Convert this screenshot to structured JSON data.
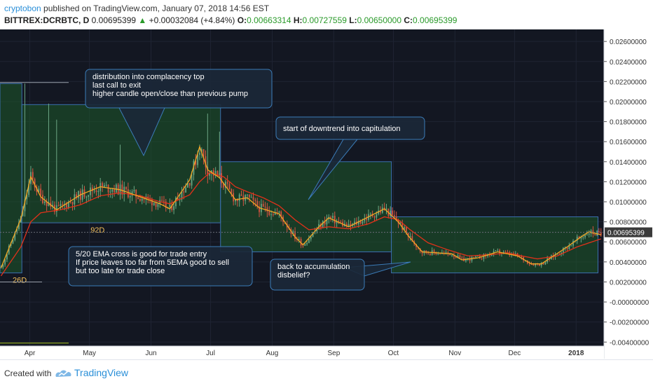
{
  "header": {
    "author": "cryptobon",
    "published": "published on TradingView.com, January 07, 2018 14:56 EST",
    "symbol": "BITTREX:DCRBTC, D",
    "last": "0.00695399",
    "change": "+0.00032084 (+4.84%)",
    "o_label": "O:",
    "o_val": "0.00663314",
    "h_label": "H:",
    "h_val": "0.00727559",
    "l_label": "L:",
    "l_val": "0.00650000",
    "c_label": "C:",
    "c_val": "0.00695399"
  },
  "footer": {
    "created_with": "Created with",
    "brand": "TradingView"
  },
  "colors": {
    "background": "#131722",
    "up": "#6ba583",
    "down": "#d75442",
    "ema_fast": "#f5a623",
    "ema_slow": "#e2311a",
    "zone": "#1e5a2a",
    "box_fill": "#1b2838",
    "box_border": "#3b7cb8",
    "price_label": "#3a3a3a"
  },
  "chart_data": {
    "type": "candlestick",
    "title": "BITTREX:DCRBTC, D",
    "x_ticks": [
      "Apr",
      "May",
      "Jun",
      "Jul",
      "Aug",
      "Sep",
      "Oct",
      "Nov",
      "Dec",
      "2018"
    ],
    "y_ticks": [
      "0.02600000",
      "0.02400000",
      "0.02200000",
      "0.02000000",
      "0.01800000",
      "0.01600000",
      "0.01400000",
      "0.01200000",
      "0.01000000",
      "0.00800000",
      "0.00600000",
      "0.00400000",
      "0.00200000",
      "-0.00000000",
      "-0.00200000",
      "-0.00400000"
    ],
    "ylim": [
      -0.0044,
      0.0272
    ],
    "xlim": [
      "2017-03-17",
      "2018-01-15"
    ],
    "last_price_label": "0.00695399",
    "series": [
      {
        "name": "EMA 5",
        "values": [
          [
            0,
            0.0034
          ],
          [
            10,
            0.0083
          ],
          [
            15,
            0.0125
          ],
          [
            20,
            0.0105
          ],
          [
            28,
            0.0092
          ],
          [
            40,
            0.0107
          ],
          [
            50,
            0.0115
          ],
          [
            60,
            0.0112
          ],
          [
            70,
            0.0105
          ],
          [
            80,
            0.0098
          ],
          [
            85,
            0.0093
          ],
          [
            95,
            0.0122
          ],
          [
            100,
            0.0155
          ],
          [
            104,
            0.0132
          ],
          [
            110,
            0.0124
          ],
          [
            118,
            0.0102
          ],
          [
            124,
            0.0104
          ],
          [
            130,
            0.0094
          ],
          [
            140,
            0.0088
          ],
          [
            148,
            0.0065
          ],
          [
            152,
            0.0057
          ],
          [
            160,
            0.0075
          ],
          [
            165,
            0.0084
          ],
          [
            175,
            0.0075
          ],
          [
            185,
            0.0085
          ],
          [
            193,
            0.0093
          ],
          [
            200,
            0.008
          ],
          [
            205,
            0.0066
          ],
          [
            212,
            0.005
          ],
          [
            220,
            0.0049
          ],
          [
            227,
            0.0048
          ],
          [
            232,
            0.0042
          ],
          [
            240,
            0.0044
          ],
          [
            250,
            0.005
          ],
          [
            260,
            0.0046
          ],
          [
            267,
            0.0038
          ],
          [
            272,
            0.0038
          ],
          [
            285,
            0.0055
          ],
          [
            292,
            0.0065
          ],
          [
            296,
            0.007
          ],
          [
            302,
            0.0067
          ]
        ]
      },
      {
        "name": "EMA 20",
        "values": [
          [
            0,
            0.0026
          ],
          [
            10,
            0.0055
          ],
          [
            15,
            0.008
          ],
          [
            20,
            0.0089
          ],
          [
            30,
            0.0092
          ],
          [
            40,
            0.0097
          ],
          [
            50,
            0.0106
          ],
          [
            60,
            0.0109
          ],
          [
            70,
            0.0106
          ],
          [
            80,
            0.01
          ],
          [
            85,
            0.0098
          ],
          [
            95,
            0.0107
          ],
          [
            100,
            0.012
          ],
          [
            105,
            0.0129
          ],
          [
            112,
            0.0125
          ],
          [
            118,
            0.0115
          ],
          [
            124,
            0.011
          ],
          [
            132,
            0.0104
          ],
          [
            140,
            0.0096
          ],
          [
            148,
            0.0082
          ],
          [
            155,
            0.0072
          ],
          [
            165,
            0.0075
          ],
          [
            175,
            0.0073
          ],
          [
            185,
            0.0078
          ],
          [
            193,
            0.0085
          ],
          [
            200,
            0.0082
          ],
          [
            206,
            0.0072
          ],
          [
            215,
            0.0059
          ],
          [
            225,
            0.0052
          ],
          [
            235,
            0.0046
          ],
          [
            245,
            0.0047
          ],
          [
            255,
            0.0049
          ],
          [
            262,
            0.0046
          ],
          [
            270,
            0.0043
          ],
          [
            280,
            0.0046
          ],
          [
            290,
            0.0055
          ],
          [
            302,
            0.0063
          ]
        ]
      }
    ],
    "zones": [
      {
        "from": "2017-03-17",
        "to": "2017-03-28",
        "low": 0.0029,
        "high": 0.0218,
        "label": "26D"
      },
      {
        "from": "2017-03-28",
        "to": "2017-07-06",
        "low": 0.0079,
        "high": 0.0197,
        "label": "92D"
      },
      {
        "from": "2017-07-06",
        "to": "2017-09-30",
        "low": 0.005,
        "high": 0.014,
        "label": ""
      },
      {
        "from": "2017-09-30",
        "to": "2018-01-12",
        "low": 0.0029,
        "high": 0.0085,
        "label": ""
      }
    ],
    "annotations": [
      {
        "lines": [
          "distribution into complacency top",
          "last call to exit",
          "higher candle open/close than previous pump"
        ]
      },
      {
        "lines": [
          "start of downtrend into capitulation"
        ]
      },
      {
        "lines": [
          "5/20 EMA cross is good for trade entry",
          "If price leaves too far from 5EMA good to sell",
          "but too late for trade close"
        ]
      },
      {
        "lines": [
          "back to accumulation",
          "disbelief?"
        ]
      }
    ],
    "grid": true
  }
}
